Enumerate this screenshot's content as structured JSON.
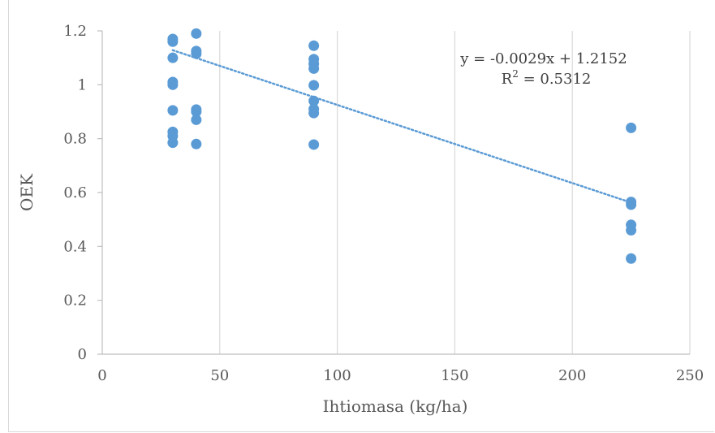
{
  "chart_data": {
    "type": "scatter",
    "xlabel": "Ihtiomasa (kg/ha)",
    "ylabel": "OEK",
    "xlim": [
      0,
      250
    ],
    "ylim": [
      0,
      1.2
    ],
    "x_ticks": [
      0,
      50,
      100,
      150,
      200,
      250
    ],
    "y_ticks": [
      0,
      0.2,
      0.4,
      0.6,
      0.8,
      1,
      1.2
    ],
    "x_tick_labels": [
      "0",
      "50",
      "100",
      "150",
      "200",
      "250"
    ],
    "y_tick_labels": [
      "0",
      "0.2",
      "0.4",
      "0.6",
      "0.8",
      "1",
      "1.2"
    ],
    "grid": {
      "vertical": true,
      "horizontal": false
    },
    "series": [
      {
        "color": "#5b9bd5",
        "points": [
          [
            30,
            1.17
          ],
          [
            30,
            1.16
          ],
          [
            30,
            1.1
          ],
          [
            30,
            1.01
          ],
          [
            30,
            1.0
          ],
          [
            30,
            0.905
          ],
          [
            30,
            0.825
          ],
          [
            30,
            0.81
          ],
          [
            30,
            0.785
          ],
          [
            40,
            1.19
          ],
          [
            40,
            1.125
          ],
          [
            40,
            1.115
          ],
          [
            40,
            0.908
          ],
          [
            40,
            0.9
          ],
          [
            40,
            0.87
          ],
          [
            40,
            0.78
          ],
          [
            90,
            1.145
          ],
          [
            90,
            1.095
          ],
          [
            90,
            1.078
          ],
          [
            90,
            1.06
          ],
          [
            90,
            0.998
          ],
          [
            90,
            0.94
          ],
          [
            90,
            0.91
          ],
          [
            90,
            0.895
          ],
          [
            90,
            0.778
          ],
          [
            225,
            0.84
          ],
          [
            225,
            0.565
          ],
          [
            225,
            0.555
          ],
          [
            225,
            0.48
          ],
          [
            225,
            0.46
          ],
          [
            225,
            0.355
          ]
        ]
      }
    ],
    "trendline": {
      "type": "linear",
      "slope": -0.0029,
      "intercept": 1.2152,
      "x_range": [
        30,
        225
      ],
      "style": "dotted",
      "color": "#5b9bd5",
      "equation": "y = -0.0029x + 1.2152",
      "r2_prefix": "R",
      "r2_exponent": "2",
      "r2_suffix": " = 0.5312"
    }
  }
}
